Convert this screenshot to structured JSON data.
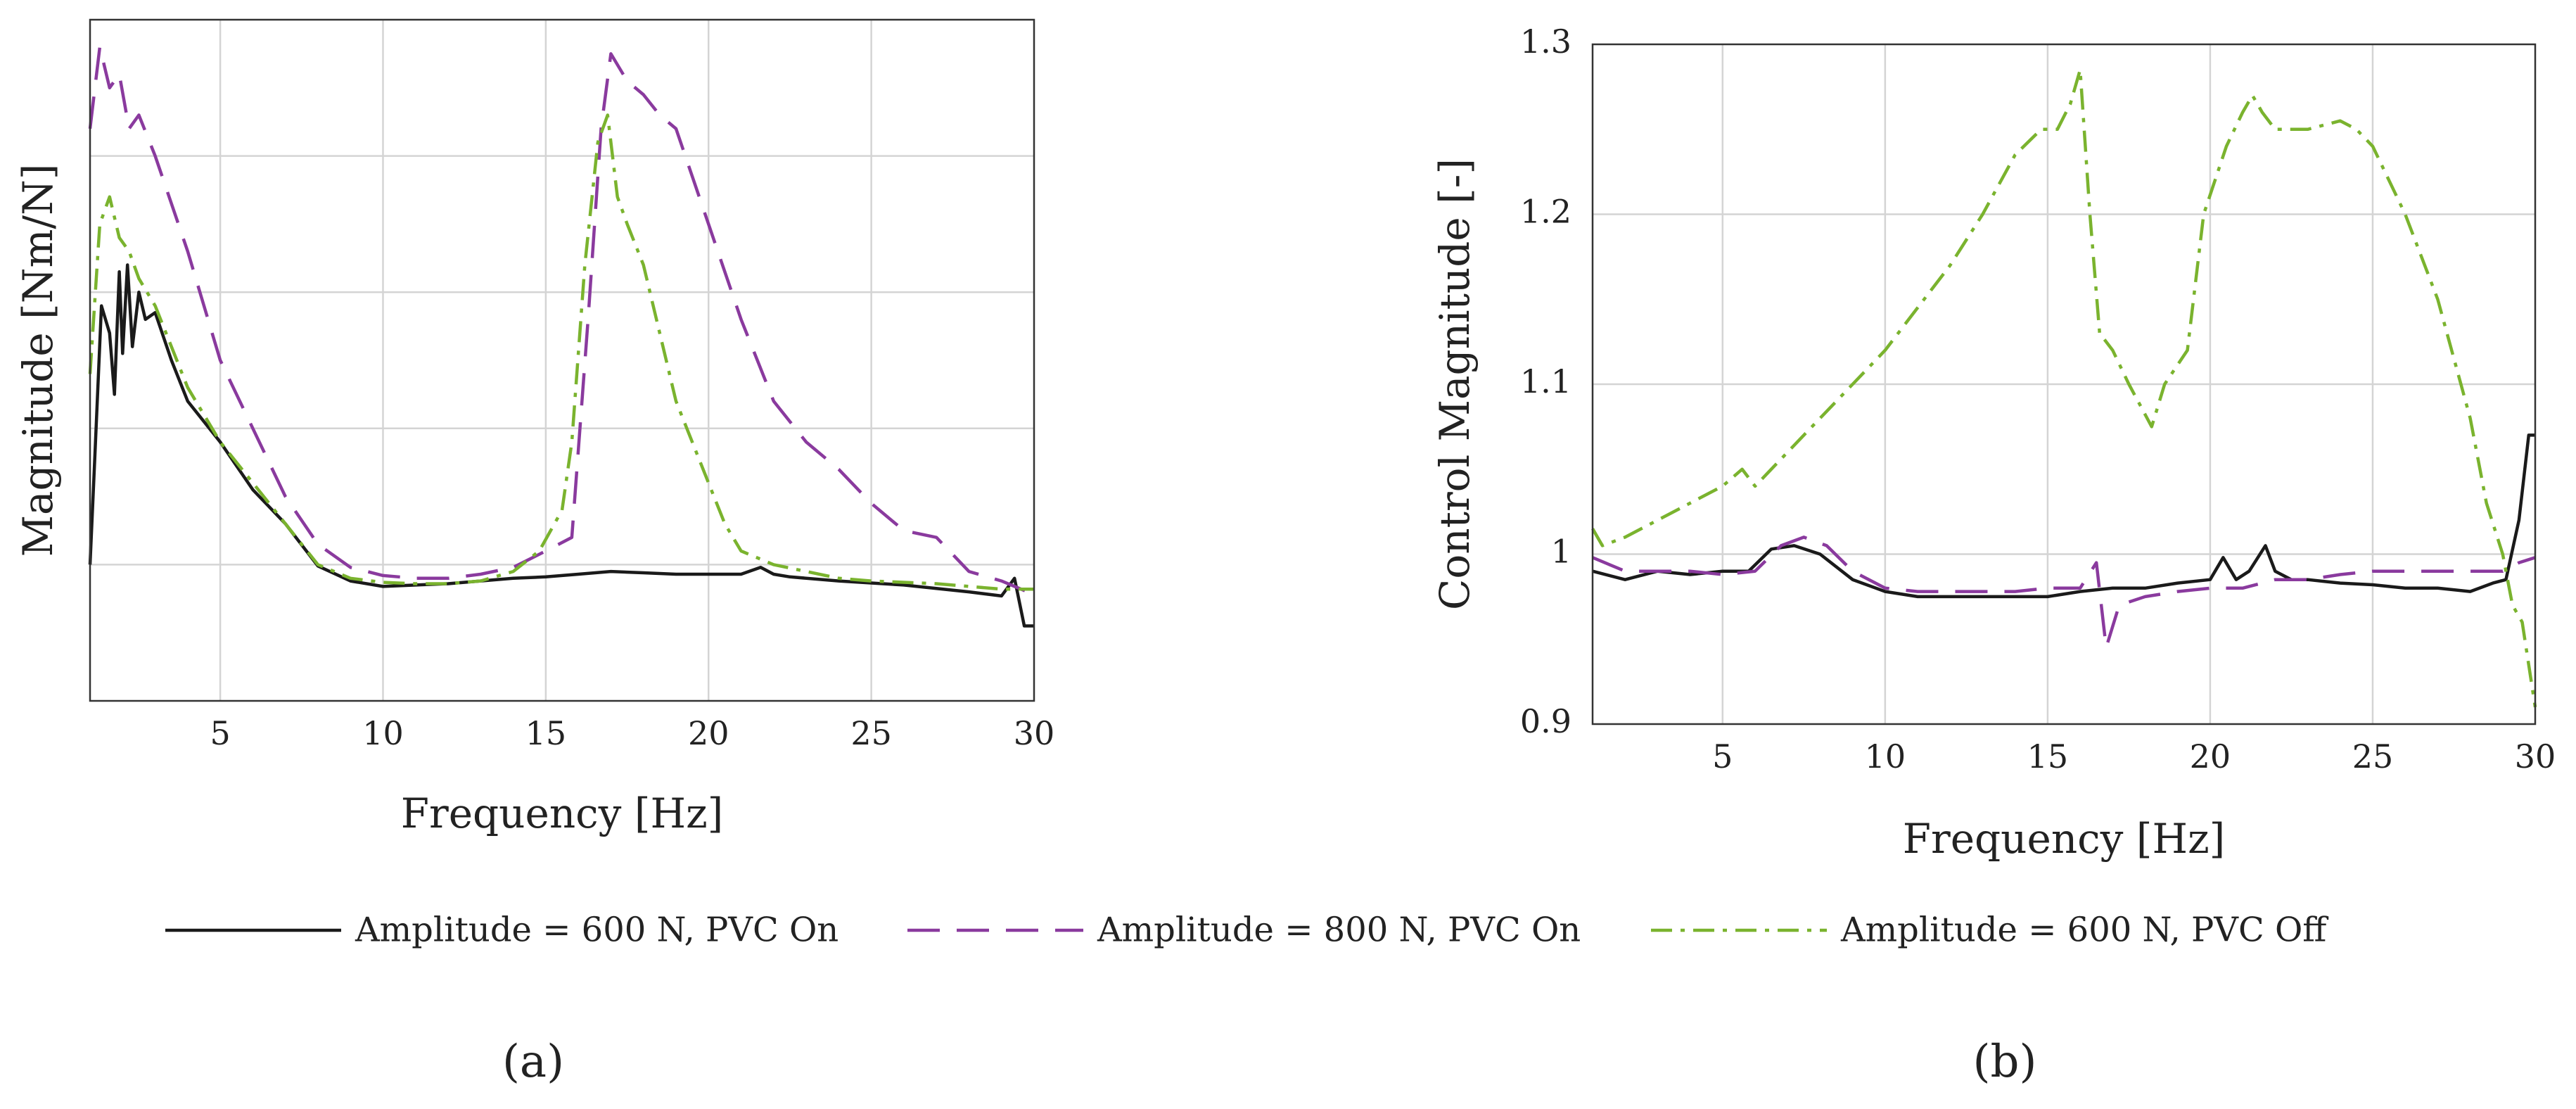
{
  "chart_data": [
    {
      "type": "line",
      "panel_label": "(a)",
      "xlabel": "Frequency [Hz]",
      "ylabel": "Magnitude [Nm/N]",
      "xlim": [
        1,
        30
      ],
      "ylim": [
        0,
        5
      ],
      "x_ticks": [
        5,
        10,
        15,
        20,
        25,
        30
      ],
      "y_ticks_labeled": [],
      "y_grid": [
        1,
        2,
        3,
        4
      ],
      "series": [
        {
          "name": "Amplitude = 600 N, PVC On",
          "color": "#1a1a1a",
          "dash": "solid",
          "x": [
            1,
            1.15,
            1.35,
            1.6,
            1.75,
            1.9,
            2.0,
            2.15,
            2.3,
            2.5,
            2.7,
            3.0,
            3.5,
            4,
            5,
            6,
            7,
            8,
            9,
            10,
            11,
            12,
            13,
            14,
            15,
            16,
            17,
            18,
            19,
            20,
            21,
            21.6,
            22,
            22.5,
            24,
            26,
            28,
            29,
            29.4,
            29.7,
            30
          ],
          "y": [
            1.0,
            1.8,
            2.9,
            2.7,
            2.25,
            3.15,
            2.55,
            3.2,
            2.6,
            3.0,
            2.8,
            2.85,
            2.5,
            2.2,
            1.9,
            1.55,
            1.3,
            0.99,
            0.88,
            0.84,
            0.85,
            0.86,
            0.88,
            0.9,
            0.91,
            0.93,
            0.95,
            0.94,
            0.93,
            0.93,
            0.93,
            0.98,
            0.93,
            0.91,
            0.88,
            0.85,
            0.8,
            0.77,
            0.9,
            0.55,
            0.55
          ]
        },
        {
          "name": "Amplitude = 800 N, PVC On",
          "color": "#8a3a9e",
          "dash": "long-dash",
          "x": [
            1,
            1.3,
            1.6,
            1.9,
            2.2,
            2.5,
            3,
            4,
            5,
            6,
            7,
            8,
            9,
            10,
            11,
            12,
            13,
            14,
            15,
            15.8,
            16.3,
            16.7,
            17,
            17.5,
            18,
            18.5,
            19,
            20,
            21,
            22,
            23,
            24,
            25,
            26,
            27,
            28,
            29,
            30
          ],
          "y": [
            4.2,
            4.8,
            4.5,
            4.6,
            4.2,
            4.3,
            4.0,
            3.3,
            2.5,
            2.0,
            1.5,
            1.15,
            0.98,
            0.92,
            0.9,
            0.9,
            0.93,
            0.98,
            1.1,
            1.2,
            2.8,
            4.2,
            4.75,
            4.55,
            4.45,
            4.3,
            4.2,
            3.5,
            2.8,
            2.2,
            1.9,
            1.7,
            1.45,
            1.25,
            1.2,
            0.95,
            0.88,
            0.78
          ]
        },
        {
          "name": "Amplitude = 600 N, PVC Off",
          "color": "#7ab32e",
          "dash": "dash-dot",
          "x": [
            1,
            1.3,
            1.6,
            1.9,
            2.2,
            2.5,
            3,
            4,
            5,
            6,
            7,
            8,
            9,
            10,
            11,
            12,
            13,
            14,
            14.8,
            15.5,
            15.8,
            16.2,
            16.6,
            16.9,
            17.2,
            17.5,
            18,
            19,
            19.5,
            20,
            20.5,
            21,
            21.5,
            22,
            23,
            24,
            25,
            27,
            29,
            30
          ],
          "y": [
            2.4,
            3.5,
            3.7,
            3.4,
            3.3,
            3.1,
            2.9,
            2.3,
            1.9,
            1.6,
            1.3,
            1.0,
            0.9,
            0.87,
            0.86,
            0.86,
            0.88,
            0.95,
            1.1,
            1.4,
            1.9,
            3.2,
            4.1,
            4.3,
            3.7,
            3.5,
            3.2,
            2.2,
            1.9,
            1.6,
            1.3,
            1.1,
            1.05,
            1.0,
            0.95,
            0.9,
            0.88,
            0.86,
            0.82,
            0.82
          ]
        }
      ]
    },
    {
      "type": "line",
      "panel_label": "(b)",
      "xlabel": "Frequency [Hz]",
      "ylabel": "Control Magnitude [-]",
      "xlim": [
        1,
        30
      ],
      "ylim": [
        0.9,
        1.3
      ],
      "x_ticks": [
        5,
        10,
        15,
        20,
        25,
        30
      ],
      "y_ticks": [
        0.9,
        1,
        1.1,
        1.2,
        1.3
      ],
      "y_tick_labels": [
        "0.9",
        "1",
        "1.1",
        "1.2",
        "1.3"
      ],
      "series": [
        {
          "name": "Amplitude = 600 N, PVC On",
          "color": "#1a1a1a",
          "dash": "solid",
          "x": [
            1,
            2,
            3,
            4,
            5,
            5.8,
            6.5,
            7.2,
            8,
            9,
            10,
            11,
            12,
            13,
            14,
            15,
            16,
            17,
            18,
            19,
            20,
            20.4,
            20.8,
            21.2,
            21.7,
            22,
            22.5,
            23,
            24,
            25,
            26,
            27,
            28,
            28.7,
            29.1,
            29.5,
            29.8,
            30
          ],
          "y": [
            0.99,
            0.985,
            0.99,
            0.988,
            0.99,
            0.99,
            1.003,
            1.005,
            1.0,
            0.985,
            0.978,
            0.975,
            0.975,
            0.975,
            0.975,
            0.975,
            0.978,
            0.98,
            0.98,
            0.983,
            0.985,
            0.998,
            0.985,
            0.99,
            1.005,
            0.99,
            0.985,
            0.985,
            0.983,
            0.982,
            0.98,
            0.98,
            0.978,
            0.983,
            0.985,
            1.02,
            1.07,
            1.07
          ]
        },
        {
          "name": "Amplitude = 800 N, PVC On",
          "color": "#8a3a9e",
          "dash": "long-dash",
          "x": [
            1,
            2,
            3,
            4,
            5,
            6,
            6.8,
            7.5,
            8.2,
            9,
            10,
            11,
            12,
            13,
            14,
            15,
            16,
            16.5,
            16.8,
            17.2,
            18,
            19,
            20,
            21,
            22,
            23,
            24,
            25,
            26,
            27,
            28,
            29,
            29.5,
            30
          ],
          "y": [
            0.998,
            0.99,
            0.99,
            0.99,
            0.988,
            0.99,
            1.005,
            1.01,
            1.005,
            0.99,
            0.98,
            0.978,
            0.978,
            0.978,
            0.978,
            0.98,
            0.98,
            0.995,
            0.945,
            0.97,
            0.975,
            0.978,
            0.98,
            0.98,
            0.985,
            0.985,
            0.988,
            0.99,
            0.99,
            0.99,
            0.99,
            0.99,
            0.995,
            0.998
          ]
        },
        {
          "name": "Amplitude = 600 N, PVC Off",
          "color": "#7ab32e",
          "dash": "dash-dot",
          "x": [
            1,
            1.3,
            2,
            3,
            4,
            5,
            5.6,
            6,
            7,
            8,
            9,
            10,
            11,
            12,
            13,
            14,
            14.8,
            15.3,
            15.7,
            16.0,
            16.3,
            16.6,
            17,
            17.5,
            18.2,
            18.6,
            19.3,
            19.8,
            20.5,
            21.0,
            21.3,
            21.6,
            22,
            23,
            24,
            24.5,
            25,
            25.5,
            26,
            27,
            28,
            28.5,
            29,
            29.3,
            29.6,
            30
          ],
          "y": [
            1.015,
            1.005,
            1.01,
            1.02,
            1.03,
            1.04,
            1.05,
            1.04,
            1.06,
            1.08,
            1.1,
            1.12,
            1.145,
            1.17,
            1.2,
            1.235,
            1.25,
            1.25,
            1.265,
            1.285,
            1.2,
            1.13,
            1.12,
            1.1,
            1.075,
            1.1,
            1.12,
            1.2,
            1.24,
            1.26,
            1.27,
            1.26,
            1.25,
            1.25,
            1.255,
            1.25,
            1.24,
            1.22,
            1.2,
            1.15,
            1.08,
            1.03,
            1.0,
            0.97,
            0.96,
            0.91
          ]
        }
      ]
    }
  ],
  "legend": {
    "items": [
      {
        "label": "Amplitude = 600 N, PVC On",
        "color": "#1a1a1a",
        "dash": "solid"
      },
      {
        "label": "Amplitude = 800 N, PVC On",
        "color": "#8a3a9e",
        "dash": "long-dash"
      },
      {
        "label": "Amplitude = 600 N, PVC Off",
        "color": "#7ab32e",
        "dash": "dash-dot"
      }
    ]
  },
  "panels": {
    "a_label": "(a)",
    "b_label": "(b)"
  }
}
